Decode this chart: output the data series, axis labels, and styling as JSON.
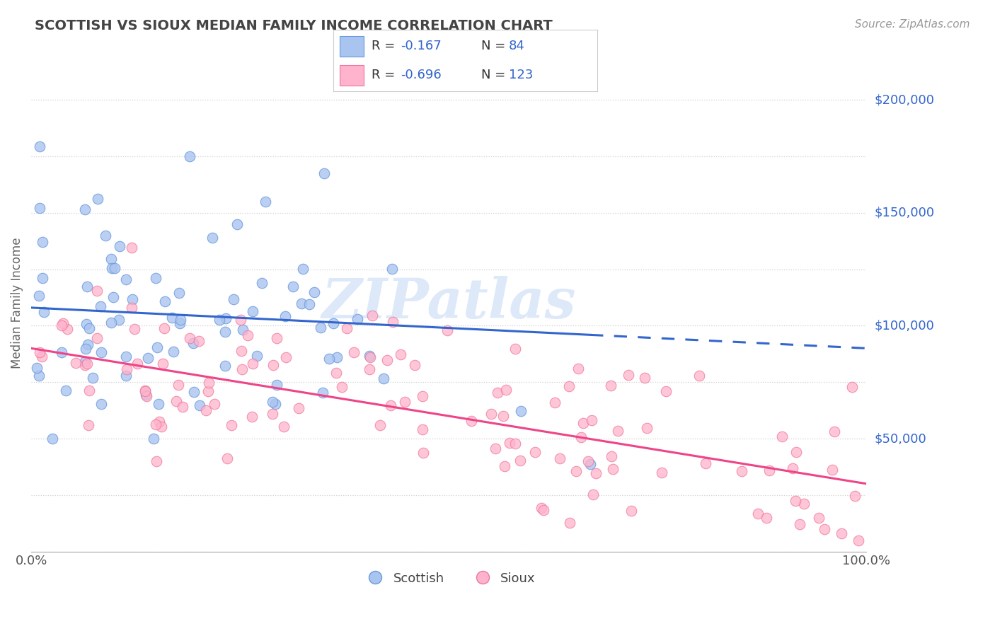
{
  "title": "SCOTTISH VS SIOUX MEDIAN FAMILY INCOME CORRELATION CHART",
  "source_text": "Source: ZipAtlas.com",
  "ylabel": "Median Family Income",
  "xlim": [
    0,
    1.0
  ],
  "ylim": [
    0,
    220000
  ],
  "background_color": "#ffffff",
  "grid_color": "#cccccc",
  "title_color": "#444444",
  "axis_label_color": "#666666",
  "legend_R_N_color": "#3366cc",
  "scottish_color": "#aac4f0",
  "scottish_edge": "#6699dd",
  "sioux_color": "#ffb3cc",
  "sioux_edge": "#ee7799",
  "scottish_line_color": "#3366cc",
  "sioux_line_color": "#ee4488",
  "scottish_R": -0.167,
  "scottish_N": 84,
  "sioux_R": -0.696,
  "sioux_N": 123,
  "watermark_color": "#dde8f8",
  "right_tick_color": "#3366cc",
  "scottish_intercept": 108000,
  "scottish_slope": -18000,
  "sioux_intercept": 90000,
  "sioux_slope": -60000
}
